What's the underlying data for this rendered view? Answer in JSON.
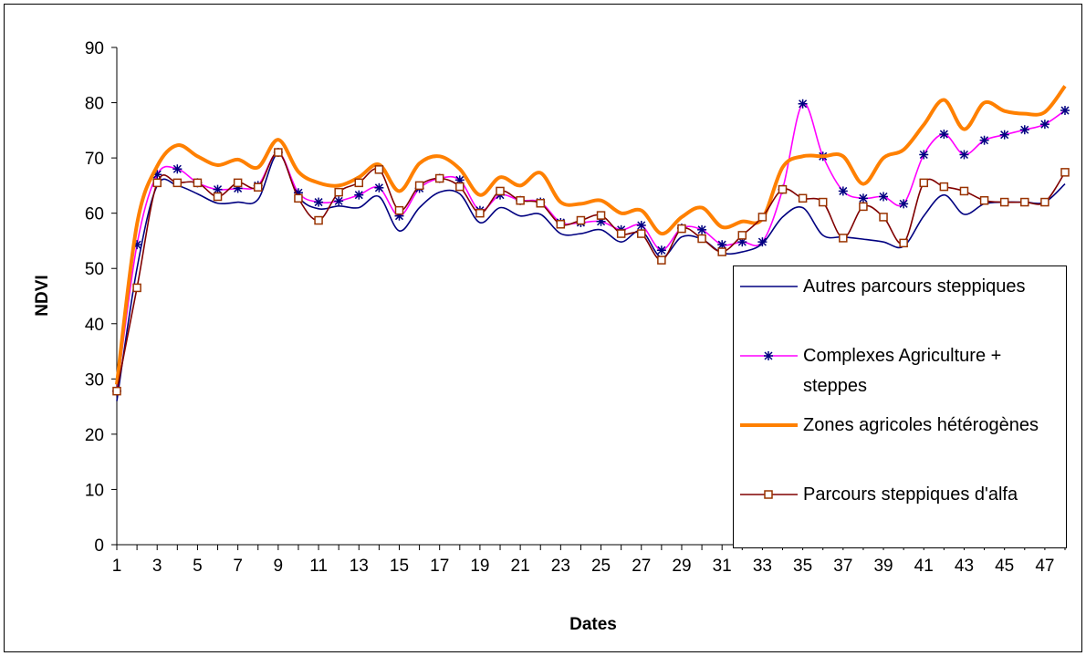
{
  "chart_data": {
    "type": "line",
    "x_label": "Dates",
    "y_label": "NDVI",
    "categories": [
      "1",
      null,
      "3",
      null,
      "5",
      null,
      "7",
      null,
      "9",
      null,
      "11",
      null,
      "13",
      null,
      "15",
      null,
      "17",
      null,
      "19",
      null,
      "21",
      null,
      "23",
      null,
      "25",
      null,
      "27",
      null,
      "29",
      null,
      "31",
      null,
      "33",
      null,
      "35",
      null,
      "37",
      null,
      "39",
      null,
      "41",
      null,
      "43",
      null,
      "45",
      null,
      "47",
      null
    ],
    "ylim": [
      0,
      90
    ],
    "yticks": [
      0,
      10,
      20,
      30,
      40,
      50,
      60,
      70,
      80,
      90
    ],
    "legend": "right",
    "series": [
      {
        "name": "Autres parcours steppiques",
        "color": "#000080",
        "marker": "none",
        "values": [
          26,
          50,
          65,
          65,
          63.5,
          61.8,
          62,
          62.5,
          70.8,
          63,
          60.8,
          61.3,
          61,
          63,
          56.8,
          61,
          63.8,
          63.5,
          58.3,
          61,
          59.5,
          59.8,
          56.3,
          56.3,
          57,
          54.8,
          56.8,
          52,
          55.7,
          55.3,
          52.8,
          53,
          54.5,
          59.3,
          61,
          56,
          55.7,
          55.3,
          54.8,
          54,
          59.5,
          63.3,
          59.8,
          61.7,
          62,
          62,
          62,
          65.3
        ]
      },
      {
        "name": "Complexes Agriculture + steppes",
        "color": "#ff00ff",
        "marker": "star",
        "values": [
          27.8,
          54.3,
          67,
          68,
          65.5,
          64.3,
          64.5,
          65,
          71,
          63.7,
          62,
          62.2,
          63.3,
          64.6,
          59.5,
          64.5,
          66.3,
          66,
          60.5,
          63.3,
          62.3,
          62,
          58.3,
          58.3,
          58.5,
          57,
          57.8,
          53.3,
          57.3,
          57,
          54.3,
          54.8,
          54.8,
          64.3,
          79.8,
          70.3,
          64,
          62.7,
          63,
          61.7,
          70.6,
          74.3,
          70.6,
          73.2,
          74.2,
          75.1,
          76.1,
          78.6
        ]
      },
      {
        "name": "Zones agricoles hétérogènes",
        "color": "#ff8000",
        "marker": "none",
        "values": [
          29,
          58,
          68.5,
          72.3,
          70.3,
          68.7,
          69.7,
          68.3,
          73.3,
          67.5,
          65.5,
          65,
          66.5,
          68.8,
          64,
          69,
          70.3,
          68,
          63.3,
          66.5,
          65,
          67.3,
          62,
          61.7,
          62.3,
          60,
          60.5,
          56.3,
          59.3,
          61,
          57.5,
          58.5,
          59,
          68.3,
          70.3,
          70.3,
          70.3,
          65.3,
          70,
          71.5,
          76,
          80.5,
          75.2,
          80,
          78.5,
          78,
          78.3,
          83
        ]
      },
      {
        "name": "Parcours steppiques d'alfa",
        "color": "#800000",
        "marker": "square",
        "values": [
          27.8,
          46.5,
          65.5,
          65.5,
          65.5,
          63,
          65.5,
          64.7,
          71,
          62.7,
          58.7,
          63.8,
          65.5,
          67.9,
          60.5,
          65,
          66.3,
          64.8,
          60,
          64,
          62.3,
          61.8,
          58,
          58.7,
          59.6,
          56.3,
          56.3,
          51.5,
          57.2,
          55.4,
          53,
          56,
          59.3,
          64.3,
          62.7,
          62,
          55.5,
          61.2,
          59.3,
          54.6,
          65.5,
          64.8,
          64,
          62.3,
          62,
          62,
          62,
          67.4
        ]
      }
    ]
  }
}
